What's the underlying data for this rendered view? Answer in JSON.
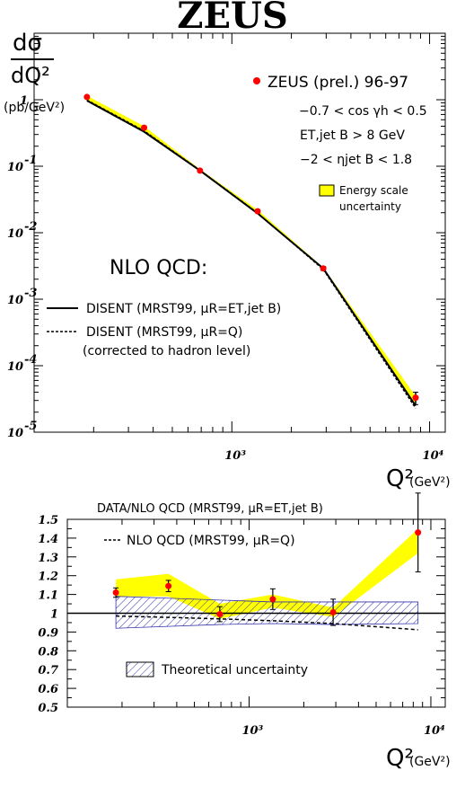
{
  "figure_title": "ZEUS",
  "chart_data": [
    {
      "type": "scatter",
      "panel": "top",
      "yscale": "log",
      "xscale": "log",
      "xlim": [
        100,
        12000
      ],
      "ylim": [
        1e-05,
        10
      ],
      "ylabel_num": "dσ",
      "ylabel_den": "dQ²",
      "ylabel_unit": "(pb/GeV²)",
      "xlabel": "Q²",
      "xlabel_unit": "(GeV²)",
      "y_tick_labels": {
        "1": "1",
        "0.1": "10-1",
        "0.01": "10-2",
        "0.001": "10-3",
        "0.0001": "10-4",
        "1e-05": "10-5"
      },
      "x_tick_labels": [
        "10³",
        "10⁴"
      ],
      "series": [
        {
          "name": "ZEUS (prel.) 96-97",
          "x": [
            185,
            360,
            690,
            1350,
            2900,
            8500
          ],
          "y": [
            1.1,
            0.38,
            0.086,
            0.021,
            0.0029,
            3.3e-05
          ],
          "yerr": [
            0.05,
            0.02,
            0.003,
            0.001,
            0.0002,
            7e-06
          ],
          "color": "#ff0000"
        },
        {
          "name": "DISENT (MRST99, μR=ET,jet B)",
          "x": [
            185,
            360,
            690,
            1350,
            2900,
            8500
          ],
          "y": [
            0.97,
            0.33,
            0.086,
            0.0195,
            0.0029,
            2.5e-05
          ],
          "style": "solid"
        },
        {
          "name": "DISENT (MRST99, μR=Q)",
          "x": [
            185,
            360,
            690,
            1350,
            2900,
            8500
          ],
          "y": [
            0.99,
            0.34,
            0.087,
            0.0198,
            0.0028,
            2.3e-05
          ],
          "style": "dashed"
        }
      ],
      "band": {
        "name": "Energy scale uncertainty",
        "x": [
          185,
          360,
          690,
          1350,
          2900,
          8500
        ],
        "low": [
          0.97,
          0.33,
          0.083,
          0.0193,
          0.0028,
          2.5e-05
        ],
        "high": [
          1.15,
          0.4,
          0.09,
          0.022,
          0.003,
          3.5e-05
        ],
        "color": "#ffff00"
      },
      "legend": {
        "data_label": "ZEUS (prel.) 96-97",
        "cut_1": "−0.7 < cos γh < 0.5",
        "cut_2": "ET,jet B > 8 GeV",
        "cut_3": "−2 < ηjet B < 1.8",
        "band_label_1": "Energy scale",
        "band_label_2": "uncertainty",
        "nlo_title": "NLO QCD:",
        "solid_label": "DISENT (MRST99, μR=ET,jet B)",
        "dashed_label": "DISENT (MRST99, μR=Q)",
        "dashed_note": "(corrected to hadron level)"
      }
    },
    {
      "type": "scatter",
      "panel": "bottom",
      "title": "DATA/NLO QCD (MRST99, μR=ET,jet B)",
      "xscale": "log",
      "xlim": [
        100,
        12000
      ],
      "ylim": [
        0.5,
        1.5
      ],
      "y_ticks": [
        0.5,
        0.6,
        0.7,
        0.8,
        0.9,
        1,
        1.1,
        1.2,
        1.3,
        1.4,
        1.5
      ],
      "xlabel": "Q²",
      "xlabel_unit": "(GeV²)",
      "x_tick_labels": [
        "10³",
        "10⁴"
      ],
      "series": [
        {
          "name": "Data/NLO",
          "x": [
            185,
            360,
            690,
            1350,
            2900,
            8500
          ],
          "y": [
            1.11,
            1.145,
            0.995,
            1.075,
            1.005,
            1.43
          ],
          "yerr": [
            0.025,
            0.03,
            0.04,
            0.055,
            0.07,
            0.21
          ],
          "color": "#ff0000"
        },
        {
          "name": "NLO QCD (MRST99, μR=Q)",
          "x": [
            185,
            360,
            690,
            1350,
            2900,
            8500
          ],
          "y": [
            0.985,
            0.978,
            0.97,
            0.96,
            0.945,
            0.912
          ],
          "style": "dashed"
        }
      ],
      "energy_band": {
        "x": [
          185,
          360,
          690,
          1350,
          2900,
          8500
        ],
        "low": [
          1.09,
          1.09,
          0.97,
          1.03,
          0.98,
          1.32
        ],
        "high": [
          1.18,
          1.21,
          1.05,
          1.1,
          1.03,
          1.45
        ],
        "color": "#ffff00"
      },
      "theory_band": {
        "name": "Theoretical uncertainty",
        "x": [
          185,
          360,
          690,
          1350,
          2900,
          8500
        ],
        "low": [
          0.92,
          0.93,
          0.94,
          0.945,
          0.94,
          0.945
        ],
        "high": [
          1.09,
          1.08,
          1.07,
          1.06,
          1.06,
          1.06
        ]
      },
      "legend": {
        "dashed_label": "NLO QCD (MRST99, μR=Q)",
        "theory_label": "Theoretical uncertainty"
      }
    }
  ]
}
